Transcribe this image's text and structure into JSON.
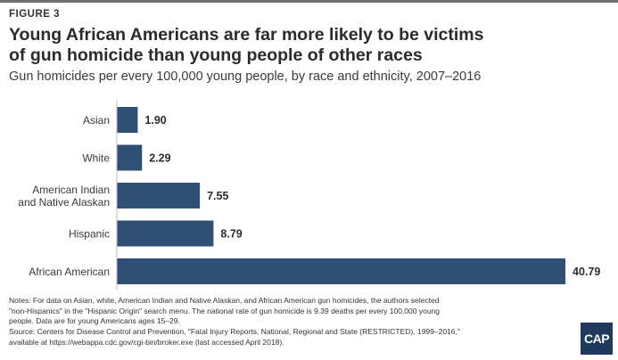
{
  "figure_label": "FIGURE 3",
  "title_line1": "Young African Americans are far more likely to be victims",
  "title_line2": "of gun homicide than young people of other races",
  "subtitle": "Gun homicides per every 100,000 young people, by race and ethnicity, 2007–2016",
  "chart_data": {
    "type": "bar",
    "orientation": "horizontal",
    "title": "",
    "categories": [
      [
        "Asian"
      ],
      [
        "White"
      ],
      [
        "American Indian",
        "and Native Alaskan"
      ],
      [
        "Hispanic"
      ],
      [
        "African American"
      ]
    ],
    "values": [
      1.9,
      2.29,
      7.55,
      8.79,
      40.79
    ],
    "value_labels": [
      "1.90",
      "2.29",
      "7.55",
      "8.79",
      "40.79"
    ],
    "xlim": [
      0,
      40.79
    ],
    "bar_color": "#2f4f75",
    "grid": false,
    "legend": false
  },
  "notes": [
    "Notes: For data on Asian, white, American Indian and Native Alaskan, and African American gun homicides, the authors selected",
    "\"non-Hispanics\" in the \"Hispanic Origin\" search menu. The national rate of gun homicide is 9.39 deaths per every 100,000 young",
    "people. Data are for young Americans ages 15–29.",
    "Source: Centers for Disease Control and Prevention, \"Fatal Injury Reports, National, Regional and State (RESTRICTED), 1999–2016,\"",
    "available at https://webappa.cdc.gov/cgi-bin/broker.exe (last accessed April 2018)."
  ],
  "logo_text": "CAP"
}
